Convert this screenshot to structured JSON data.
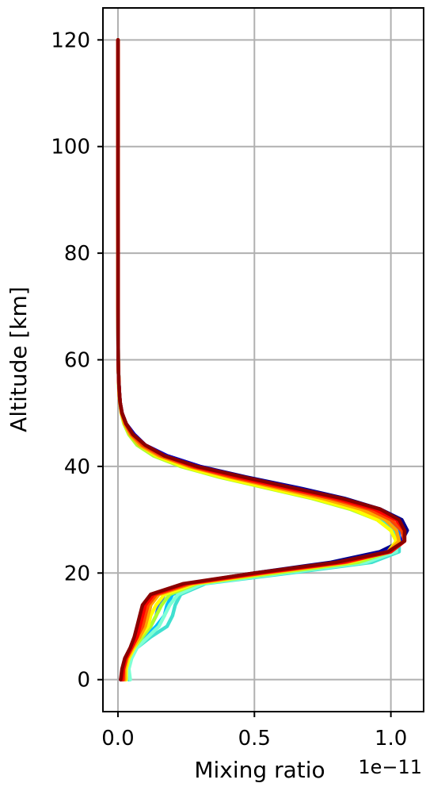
{
  "chart_data": {
    "type": "line",
    "title": "",
    "xlabel": "Mixing ratio",
    "ylabel": "Altitude [km]",
    "x_offset_text": "1e−11",
    "xlim": [
      -0.055,
      1.12
    ],
    "ylim": [
      -6,
      126
    ],
    "grid": true,
    "legend": "none",
    "x_ticks": [
      0.0,
      0.5,
      1.0
    ],
    "x_tick_labels": [
      "0.0",
      "0.5",
      "1.0"
    ],
    "y_ticks": [
      0,
      20,
      40,
      60,
      80,
      100,
      120
    ],
    "y_tick_labels": [
      "0",
      "20",
      "40",
      "60",
      "80",
      "100",
      "120"
    ],
    "altitude": [
      0,
      2,
      4,
      6,
      8,
      10,
      12,
      14,
      16,
      18,
      20,
      22,
      24,
      26,
      28,
      30,
      32,
      34,
      36,
      38,
      40,
      42,
      44,
      46,
      48,
      50,
      52,
      54,
      56,
      58,
      60,
      70,
      80,
      90,
      100,
      110,
      120
    ],
    "series": [
      {
        "color": "#00008b",
        "values": [
          0.01,
          0.02,
          0.03,
          0.05,
          0.07,
          0.08,
          0.09,
          0.1,
          0.13,
          0.25,
          0.5,
          0.78,
          0.96,
          1.04,
          1.06,
          1.04,
          0.96,
          0.83,
          0.66,
          0.47,
          0.3,
          0.18,
          0.1,
          0.06,
          0.03,
          0.015,
          0.008,
          0.005,
          0.003,
          0.002,
          0.001,
          0.0005,
          0.0003,
          0.0002,
          0.0001,
          0.0001,
          0.0001
        ]
      },
      {
        "color": "#0000cd",
        "values": [
          0.015,
          0.02,
          0.03,
          0.05,
          0.08,
          0.1,
          0.11,
          0.12,
          0.14,
          0.26,
          0.52,
          0.8,
          0.98,
          1.04,
          1.05,
          1.03,
          0.95,
          0.82,
          0.65,
          0.46,
          0.3,
          0.18,
          0.1,
          0.06,
          0.03,
          0.015,
          0.008,
          0.005,
          0.003,
          0.002,
          0.001,
          0.0005,
          0.0003,
          0.0002,
          0.0001,
          0.0001,
          0.0001
        ]
      },
      {
        "color": "#1e6fff",
        "values": [
          0.02,
          0.025,
          0.035,
          0.055,
          0.09,
          0.12,
          0.14,
          0.15,
          0.17,
          0.28,
          0.56,
          0.86,
          1.0,
          1.03,
          1.03,
          1.0,
          0.92,
          0.78,
          0.61,
          0.43,
          0.27,
          0.16,
          0.09,
          0.05,
          0.028,
          0.014,
          0.008,
          0.005,
          0.003,
          0.002,
          0.001,
          0.0005,
          0.0003,
          0.0002,
          0.0001,
          0.0001,
          0.0001
        ]
      },
      {
        "color": "#00bfff",
        "values": [
          0.025,
          0.03,
          0.04,
          0.06,
          0.1,
          0.14,
          0.17,
          0.18,
          0.2,
          0.3,
          0.6,
          0.9,
          1.02,
          1.03,
          1.02,
          0.98,
          0.9,
          0.76,
          0.59,
          0.41,
          0.26,
          0.15,
          0.08,
          0.045,
          0.025,
          0.013,
          0.007,
          0.004,
          0.003,
          0.002,
          0.001,
          0.0005,
          0.0003,
          0.0002,
          0.0001,
          0.0001,
          0.0001
        ]
      },
      {
        "color": "#40e0d0",
        "values": [
          0.04,
          0.035,
          0.045,
          0.07,
          0.12,
          0.18,
          0.2,
          0.21,
          0.23,
          0.32,
          0.63,
          0.93,
          1.03,
          1.03,
          1.01,
          0.96,
          0.87,
          0.73,
          0.56,
          0.39,
          0.24,
          0.14,
          0.08,
          0.045,
          0.025,
          0.013,
          0.007,
          0.004,
          0.003,
          0.002,
          0.001,
          0.0005,
          0.0003,
          0.0002,
          0.0001,
          0.0001,
          0.0001
        ]
      },
      {
        "color": "#7fffd4",
        "values": [
          0.045,
          0.04,
          0.05,
          0.07,
          0.11,
          0.15,
          0.17,
          0.19,
          0.22,
          0.31,
          0.61,
          0.91,
          1.02,
          1.02,
          1.0,
          0.95,
          0.86,
          0.72,
          0.55,
          0.38,
          0.24,
          0.14,
          0.08,
          0.045,
          0.025,
          0.013,
          0.007,
          0.004,
          0.003,
          0.002,
          0.001,
          0.0005,
          0.0003,
          0.0002,
          0.0001,
          0.0001,
          0.0001
        ]
      },
      {
        "color": "#adff2f",
        "values": [
          0.03,
          0.03,
          0.04,
          0.06,
          0.09,
          0.12,
          0.14,
          0.16,
          0.19,
          0.29,
          0.58,
          0.88,
          1.0,
          1.02,
          1.0,
          0.95,
          0.85,
          0.71,
          0.54,
          0.37,
          0.23,
          0.13,
          0.07,
          0.04,
          0.022,
          0.012,
          0.007,
          0.004,
          0.003,
          0.002,
          0.001,
          0.0005,
          0.0003,
          0.0002,
          0.0001,
          0.0001,
          0.0001
        ]
      },
      {
        "color": "#ffff00",
        "values": [
          0.03,
          0.03,
          0.04,
          0.06,
          0.08,
          0.11,
          0.12,
          0.14,
          0.17,
          0.28,
          0.55,
          0.85,
          0.99,
          1.02,
          1.0,
          0.95,
          0.86,
          0.72,
          0.55,
          0.38,
          0.24,
          0.14,
          0.08,
          0.045,
          0.025,
          0.013,
          0.007,
          0.004,
          0.003,
          0.002,
          0.001,
          0.0005,
          0.0003,
          0.0002,
          0.0001,
          0.0001,
          0.0001
        ]
      },
      {
        "color": "#ffa500",
        "values": [
          0.025,
          0.025,
          0.035,
          0.055,
          0.08,
          0.1,
          0.11,
          0.12,
          0.15,
          0.27,
          0.54,
          0.84,
          0.99,
          1.03,
          1.02,
          0.98,
          0.89,
          0.75,
          0.58,
          0.41,
          0.26,
          0.15,
          0.08,
          0.045,
          0.025,
          0.013,
          0.007,
          0.004,
          0.003,
          0.002,
          0.001,
          0.0005,
          0.0003,
          0.0002,
          0.0001,
          0.0001,
          0.0001
        ]
      },
      {
        "color": "#ff4500",
        "values": [
          0.02,
          0.02,
          0.03,
          0.05,
          0.07,
          0.09,
          0.1,
          0.11,
          0.14,
          0.26,
          0.53,
          0.83,
          1.0,
          1.05,
          1.04,
          1.0,
          0.92,
          0.78,
          0.6,
          0.42,
          0.27,
          0.16,
          0.09,
          0.05,
          0.027,
          0.014,
          0.008,
          0.005,
          0.003,
          0.002,
          0.001,
          0.0005,
          0.0003,
          0.0002,
          0.0001,
          0.0001,
          0.0001
        ]
      },
      {
        "color": "#ff0000",
        "values": [
          0.015,
          0.02,
          0.03,
          0.05,
          0.07,
          0.08,
          0.09,
          0.1,
          0.13,
          0.25,
          0.52,
          0.82,
          1.0,
          1.05,
          1.05,
          1.02,
          0.94,
          0.8,
          0.62,
          0.44,
          0.28,
          0.17,
          0.1,
          0.055,
          0.03,
          0.015,
          0.008,
          0.005,
          0.003,
          0.002,
          0.001,
          0.0005,
          0.0003,
          0.0002,
          0.0001,
          0.0001,
          0.0001
        ]
      },
      {
        "color": "#8b0000",
        "values": [
          0.01,
          0.015,
          0.025,
          0.045,
          0.06,
          0.07,
          0.08,
          0.09,
          0.12,
          0.24,
          0.5,
          0.8,
          0.99,
          1.05,
          1.05,
          1.03,
          0.96,
          0.82,
          0.64,
          0.46,
          0.29,
          0.17,
          0.1,
          0.055,
          0.03,
          0.015,
          0.008,
          0.005,
          0.003,
          0.002,
          0.001,
          0.0005,
          0.0003,
          0.0002,
          0.0001,
          0.0001,
          0.0001
        ]
      }
    ]
  }
}
